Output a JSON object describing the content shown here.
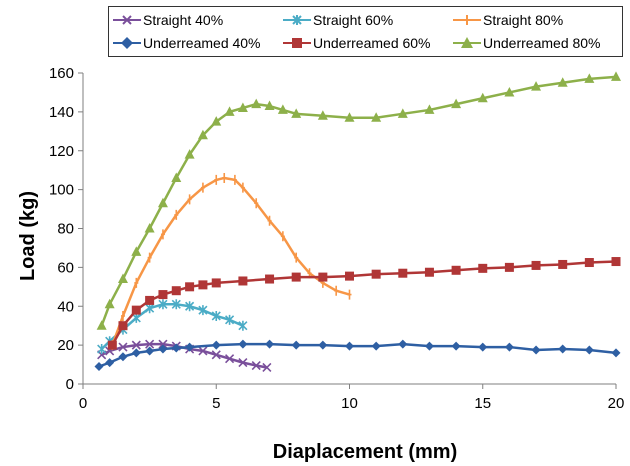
{
  "chart_data": {
    "type": "scatter",
    "title": "",
    "xlabel": "Diaplacement (mm)",
    "ylabel": "Load (kg)",
    "xlim": [
      0,
      20
    ],
    "ylim": [
      0,
      160
    ],
    "xticks": [
      0,
      5,
      10,
      15,
      20
    ],
    "yticks": [
      0,
      20,
      40,
      60,
      80,
      100,
      120,
      140,
      160
    ],
    "grid": false,
    "legend_position": "top",
    "series": [
      {
        "name": "Straight 40%",
        "color": "#7a4f9b",
        "marker": "x",
        "x": [
          0.7,
          1.0,
          1.5,
          2.0,
          2.5,
          3.0,
          3.5,
          4.0,
          4.5,
          5.0,
          5.5,
          6.0,
          6.5,
          6.9
        ],
        "y": [
          15,
          17,
          19,
          20,
          20.5,
          20.5,
          19.5,
          18,
          17,
          15,
          13,
          11,
          9.5,
          8.5
        ]
      },
      {
        "name": "Straight 60%",
        "color": "#4bacc6",
        "marker": "star",
        "x": [
          0.7,
          1.0,
          1.5,
          2.0,
          2.5,
          3.0,
          3.5,
          4.0,
          4.5,
          5.0,
          5.5,
          6.0
        ],
        "y": [
          18,
          22,
          28,
          34,
          39,
          41,
          41,
          40,
          38,
          35,
          33,
          30
        ]
      },
      {
        "name": "Straight 80%",
        "color": "#f79646",
        "marker": "plus",
        "x": [
          1.1,
          1.5,
          2.0,
          2.5,
          3.0,
          3.5,
          4.0,
          4.5,
          5.0,
          5.3,
          5.7,
          6.0,
          6.5,
          7.0,
          7.5,
          8.0,
          8.5,
          9.0,
          9.5,
          10.0
        ],
        "y": [
          20,
          35,
          52,
          65,
          77,
          87,
          95,
          101,
          105,
          106,
          105,
          101,
          93,
          84,
          76,
          65,
          57,
          52,
          48,
          46
        ]
      },
      {
        "name": "Underreamed 40%",
        "color": "#2e5fa3",
        "marker": "diamond",
        "x": [
          0.6,
          1.0,
          1.5,
          2.0,
          2.5,
          3.0,
          3.5,
          4.0,
          5.0,
          6.0,
          7.0,
          8.0,
          9.0,
          10.0,
          11.0,
          12.0,
          13.0,
          14.0,
          15.0,
          16.0,
          17.0,
          18.0,
          19.0,
          20.0
        ],
        "y": [
          9,
          11,
          14,
          16,
          17,
          18,
          18.5,
          19,
          20,
          20.5,
          20.5,
          20,
          20,
          19.5,
          19.5,
          20.5,
          19.5,
          19.5,
          19,
          19,
          17.5,
          18,
          17.5,
          16
        ]
      },
      {
        "name": "Underreamed 60%",
        "color": "#b03636",
        "marker": "square",
        "x": [
          1.1,
          1.5,
          2.0,
          2.5,
          3.0,
          3.5,
          4.0,
          4.5,
          5.0,
          6.0,
          7.0,
          8.0,
          9.0,
          10.0,
          11.0,
          12.0,
          13.0,
          14.0,
          15.0,
          16.0,
          17.0,
          18.0,
          19.0,
          20.0
        ],
        "y": [
          20,
          30,
          38,
          43,
          46,
          48,
          50,
          51,
          52,
          53,
          54,
          55,
          55,
          55.5,
          56.5,
          57,
          57.5,
          58.5,
          59.5,
          60,
          61,
          61.5,
          62.5,
          63
        ]
      },
      {
        "name": "Underreamed 80%",
        "color": "#8db04a",
        "marker": "triangle",
        "x": [
          0.7,
          1.0,
          1.5,
          2.0,
          2.5,
          3.0,
          3.5,
          4.0,
          4.5,
          5.0,
          5.5,
          6.0,
          6.5,
          7.0,
          7.5,
          8.0,
          9.0,
          10.0,
          11.0,
          12.0,
          13.0,
          14.0,
          15.0,
          16.0,
          17.0,
          18.0,
          19.0,
          20.0
        ],
        "y": [
          30,
          41,
          54,
          68,
          80,
          93,
          106,
          118,
          128,
          135,
          140,
          142,
          144,
          143,
          141,
          139,
          138,
          137,
          137,
          139,
          141,
          144,
          147,
          150,
          153,
          155,
          157,
          158
        ]
      }
    ]
  }
}
